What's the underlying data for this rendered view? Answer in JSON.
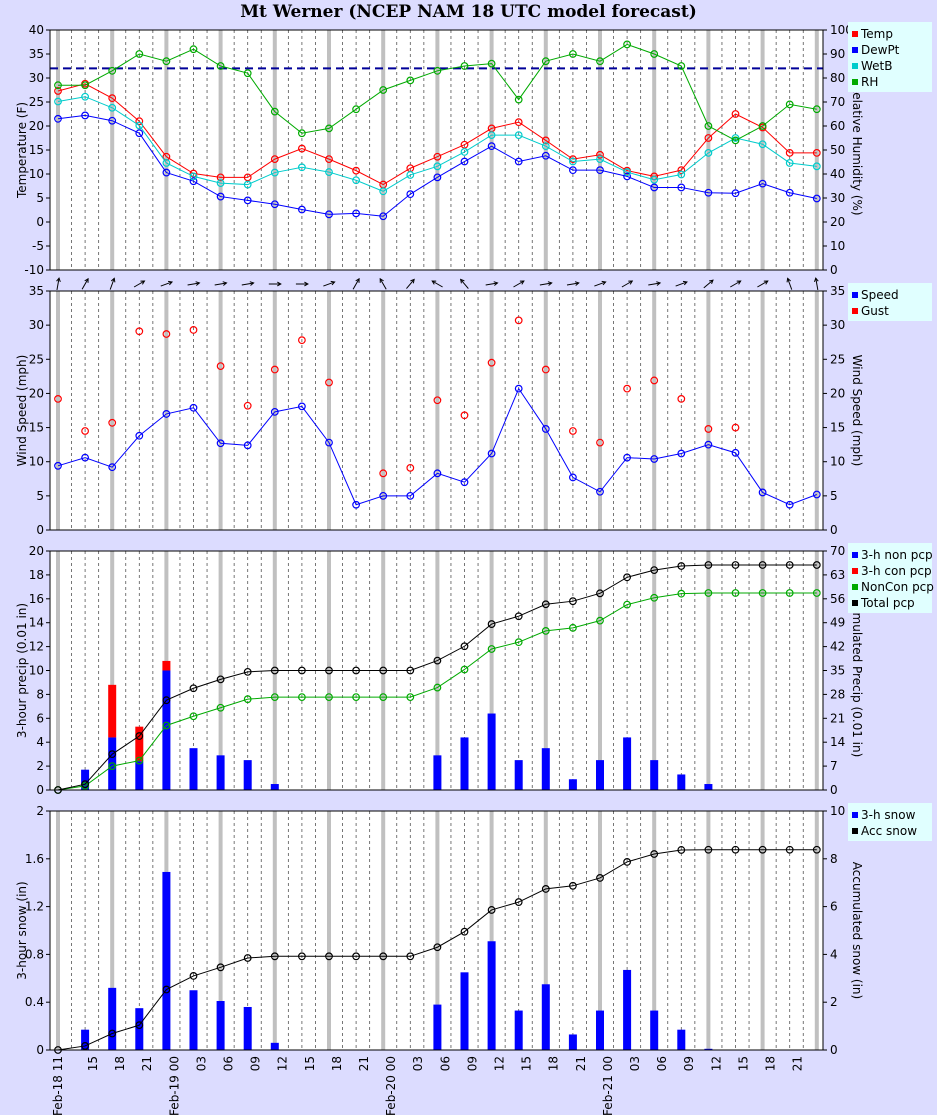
{
  "title": "Mt Werner (NCEP NAM 18 UTC model forecast)",
  "x_tick_labels": [
    "Feb-18 11",
    "15",
    "18",
    "21",
    "Feb-19 00",
    "03",
    "06",
    "09",
    "12",
    "15",
    "18",
    "21",
    "Feb-20 00",
    "03",
    "06",
    "09",
    "12",
    "15",
    "18",
    "21",
    "Feb-21 00",
    "03",
    "06",
    "09",
    "12",
    "15",
    "18",
    "21"
  ],
  "chart_data": [
    {
      "type": "line",
      "ylabel": "Temperature (F)",
      "y2label": "Relative Humidity (%)",
      "ylim": [
        -10,
        40
      ],
      "y2lim": [
        0,
        100
      ],
      "yticks": [
        -10,
        -5,
        0,
        5,
        10,
        15,
        20,
        25,
        30,
        35,
        40
      ],
      "y2ticks": [
        0,
        10,
        20,
        30,
        40,
        50,
        60,
        70,
        80,
        90,
        100
      ],
      "reference_line": 32,
      "legend": [
        "Temp",
        "DewPt",
        "WetB",
        "RH"
      ],
      "legend_colors": [
        "#ff0000",
        "#0000ff",
        "#00cccc",
        "#00aa00"
      ],
      "series": [
        {
          "name": "Temp",
          "color": "#ff0000",
          "axis": "left",
          "values": [
            27.3,
            28.8,
            25.8,
            21,
            13.6,
            10.1,
            9.3,
            9.3,
            13.1,
            15.3,
            13.1,
            10.7,
            7.8,
            11.2,
            13.6,
            16.1,
            19.5,
            20.8,
            17,
            13.1,
            14,
            10.7,
            9.5,
            10.8,
            17.5,
            22.5,
            19.7,
            14.4,
            14.4
          ]
        },
        {
          "name": "DewPt",
          "color": "#0000ff",
          "axis": "left",
          "values": [
            21.5,
            22.2,
            21.1,
            18.5,
            10.3,
            8.5,
            5.3,
            4.5,
            3.7,
            2.6,
            1.6,
            1.8,
            1.2,
            5.8,
            9.3,
            12.6,
            15.8,
            12.6,
            13.8,
            10.8,
            10.8,
            9.5,
            7.2,
            7.2,
            6.1,
            6,
            8,
            6.1,
            4.9
          ]
        },
        {
          "name": "WetB",
          "color": "#00cccc",
          "axis": "left",
          "values": [
            25.1,
            26.1,
            23.8,
            20.1,
            12.3,
            9.5,
            8.1,
            7.8,
            10.3,
            11.4,
            10.4,
            8.7,
            6.4,
            9.8,
            11.6,
            14.6,
            18.1,
            18.1,
            15.8,
            12.6,
            13.1,
            10.4,
            8.8,
            9.9,
            14.4,
            17.5,
            16.2,
            12.3,
            11.6
          ]
        },
        {
          "name": "RH",
          "color": "#00aa00",
          "axis": "right",
          "values": [
            77,
            77,
            83,
            90,
            87,
            92,
            85,
            82,
            66,
            57,
            59,
            67,
            75,
            79,
            83,
            85,
            86,
            71,
            87,
            90,
            87,
            94,
            90,
            85,
            60,
            54,
            60,
            69,
            67
          ]
        }
      ]
    },
    {
      "type": "line",
      "ylabel": "Wind Speed (mph)",
      "y2label": "Wind Speed (mph)",
      "ylim": [
        0,
        35
      ],
      "yticks": [
        0,
        5,
        10,
        15,
        20,
        25,
        30,
        35
      ],
      "legend": [
        "Speed",
        "Gust"
      ],
      "legend_colors": [
        "#0000ff",
        "#ff0000"
      ],
      "wind_direction_deg": [
        10,
        30,
        20,
        60,
        70,
        80,
        80,
        80,
        90,
        90,
        70,
        30,
        330,
        40,
        300,
        320,
        80,
        60,
        80,
        80,
        70,
        60,
        80,
        70,
        50,
        60,
        60,
        340,
        350
      ],
      "series": [
        {
          "name": "Speed",
          "color": "#0000ff",
          "style": "line",
          "values": [
            9.4,
            10.6,
            9.2,
            13.8,
            17,
            17.9,
            12.7,
            12.4,
            17.3,
            18.1,
            12.8,
            3.7,
            5,
            5,
            8.3,
            7,
            11.2,
            20.7,
            14.8,
            7.7,
            5.6,
            10.6,
            10.4,
            11.2,
            12.5,
            11.3,
            5.5,
            3.7,
            5.2
          ]
        },
        {
          "name": "Gust",
          "color": "#ff0000",
          "style": "points",
          "values": [
            19.2,
            14.5,
            15.7,
            29.1,
            28.7,
            29.3,
            24,
            18.2,
            23.5,
            27.8,
            21.6,
            null,
            8.3,
            9.1,
            19,
            16.8,
            24.5,
            30.7,
            23.5,
            14.5,
            12.8,
            20.7,
            21.9,
            19.2,
            14.8,
            15,
            null,
            null,
            null
          ]
        }
      ]
    },
    {
      "type": "bar",
      "ylabel": "3-hour precip (0.01 in)",
      "y2label": "Accumulated Precip (0.01 in)",
      "ylim": [
        0,
        20
      ],
      "y2lim": [
        0,
        70
      ],
      "yticks": [
        0,
        2,
        4,
        6,
        8,
        10,
        12,
        14,
        16,
        18,
        20
      ],
      "y2ticks": [
        0,
        7,
        14,
        21,
        28,
        35,
        42,
        49,
        56,
        63,
        70
      ],
      "legend": [
        "3-h non pcp",
        "3-h con pcp",
        "NonCon pcp",
        "Total pcp"
      ],
      "legend_colors": [
        "#0000ff",
        "#ff0000",
        "#00aa00",
        "#000000"
      ],
      "series": [
        {
          "name": "3-h non pcp",
          "color": "#0000ff",
          "type": "bar",
          "values": [
            0,
            1.7,
            4.4,
            2.4,
            10,
            3.5,
            2.9,
            2.5,
            0.5,
            0,
            0,
            0,
            0,
            0,
            2.9,
            4.4,
            6.4,
            2.5,
            3.5,
            0.9,
            2.5,
            4.4,
            2.5,
            1.3,
            0.5,
            0,
            0,
            0,
            0
          ]
        },
        {
          "name": "3-h con pcp",
          "color": "#ff0000",
          "type": "bar",
          "values": [
            0,
            0,
            4.4,
            2.9,
            0.8,
            0,
            0,
            0,
            0,
            0,
            0,
            0,
            0,
            0,
            0,
            0,
            0,
            0,
            0,
            0,
            0,
            0,
            0,
            0,
            0,
            0,
            0,
            0,
            0
          ]
        },
        {
          "name": "NonCon pcp",
          "color": "#00aa00",
          "type": "line",
          "axis": "right",
          "values": [
            0,
            1.2,
            7,
            8.6,
            18.9,
            21.6,
            24.1,
            26.6,
            27.2,
            27.2,
            27.2,
            27.2,
            27.2,
            27.2,
            30,
            35.3,
            41.3,
            43.3,
            46.6,
            47.5,
            49.6,
            54.3,
            56.3,
            57.5,
            57.7,
            57.7,
            57.7,
            57.7,
            57.7
          ]
        },
        {
          "name": "Total pcp",
          "color": "#000000",
          "type": "line",
          "axis": "right",
          "values": [
            0,
            1.7,
            10.5,
            15.8,
            26.3,
            29.8,
            32.4,
            34.6,
            35,
            35,
            35,
            35,
            35,
            35,
            37.9,
            42.1,
            48.6,
            50.9,
            54.4,
            55.3,
            57.6,
            62.3,
            64.4,
            65.6,
            65.9,
            65.9,
            65.9,
            65.9,
            65.9
          ]
        }
      ]
    },
    {
      "type": "bar",
      "ylabel": "3-hour snow (in)",
      "y2label": "Accumulated snow (in)",
      "ylim": [
        0,
        2
      ],
      "y2lim": [
        0,
        10
      ],
      "yticks": [
        0,
        0.4,
        0.8,
        1.2,
        1.6,
        2
      ],
      "ytick_labels": [
        "0",
        "0.4",
        "0.8",
        "1.2",
        "1.6",
        "2"
      ],
      "y2ticks": [
        0,
        2,
        4,
        6,
        8,
        10
      ],
      "legend": [
        "3-h snow",
        "Acc snow"
      ],
      "legend_colors": [
        "#0000ff",
        "#000000"
      ],
      "series": [
        {
          "name": "3-h snow",
          "color": "#0000ff",
          "type": "bar",
          "values": [
            0,
            0.17,
            0.52,
            0.35,
            1.49,
            0.5,
            0.41,
            0.36,
            0.06,
            0,
            0,
            0,
            0,
            0,
            0.38,
            0.65,
            0.91,
            0.33,
            0.55,
            0.13,
            0.33,
            0.67,
            0.33,
            0.17,
            0.01,
            0,
            0,
            0,
            0
          ]
        },
        {
          "name": "Acc snow",
          "color": "#000000",
          "type": "line",
          "axis": "right",
          "values": [
            0,
            0.17,
            0.69,
            1.04,
            2.53,
            3.1,
            3.46,
            3.85,
            3.92,
            3.92,
            3.92,
            3.92,
            3.92,
            3.92,
            4.3,
            4.95,
            5.86,
            6.19,
            6.74,
            6.87,
            7.2,
            7.87,
            8.2,
            8.37,
            8.38,
            8.38,
            8.38,
            8.38,
            8.38
          ]
        }
      ]
    }
  ]
}
